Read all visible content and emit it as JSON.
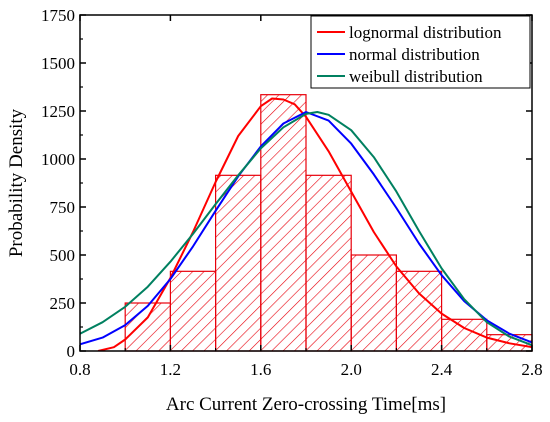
{
  "chart_data": {
    "type": "bar",
    "title": "",
    "xlabel": "Arc Current Zero-crossing Time[ms]",
    "ylabel": "Probability Density",
    "xlim": [
      0.8,
      2.8
    ],
    "ylim": [
      0,
      1750
    ],
    "x_ticks": [
      "0.8",
      "1.2",
      "1.6",
      "2.0",
      "2.4",
      "2.8"
    ],
    "y_ticks": [
      "0",
      "250",
      "500",
      "750",
      "1000",
      "1250",
      "1500",
      "1750"
    ],
    "grid": false,
    "legend_position": "top-right",
    "histogram": {
      "bin_edges": [
        1.0,
        1.2,
        1.4,
        1.6,
        1.8,
        2.0,
        2.2,
        2.4,
        2.6,
        2.8
      ],
      "values": [
        250,
        415,
        915,
        1335,
        915,
        500,
        415,
        165,
        85
      ],
      "color": "#e8000b",
      "fill": "hatched"
    },
    "series": [
      {
        "name": "lognormal distribution",
        "color": "#ff0000",
        "points": [
          [
            0.88,
            0
          ],
          [
            0.95,
            20
          ],
          [
            1.0,
            60
          ],
          [
            1.1,
            175
          ],
          [
            1.2,
            380
          ],
          [
            1.3,
            620
          ],
          [
            1.4,
            880
          ],
          [
            1.5,
            1120
          ],
          [
            1.6,
            1275
          ],
          [
            1.65,
            1315
          ],
          [
            1.7,
            1310
          ],
          [
            1.75,
            1285
          ],
          [
            1.8,
            1220
          ],
          [
            1.9,
            1040
          ],
          [
            2.0,
            830
          ],
          [
            2.1,
            620
          ],
          [
            2.2,
            440
          ],
          [
            2.3,
            300
          ],
          [
            2.4,
            195
          ],
          [
            2.5,
            120
          ],
          [
            2.6,
            70
          ],
          [
            2.7,
            40
          ],
          [
            2.8,
            20
          ]
        ]
      },
      {
        "name": "normal distribution",
        "color": "#0000ff",
        "points": [
          [
            0.8,
            35
          ],
          [
            0.9,
            70
          ],
          [
            1.0,
            135
          ],
          [
            1.1,
            235
          ],
          [
            1.2,
            375
          ],
          [
            1.3,
            545
          ],
          [
            1.4,
            730
          ],
          [
            1.5,
            910
          ],
          [
            1.6,
            1065
          ],
          [
            1.7,
            1185
          ],
          [
            1.8,
            1245
          ],
          [
            1.9,
            1200
          ],
          [
            2.0,
            1080
          ],
          [
            2.1,
            920
          ],
          [
            2.2,
            745
          ],
          [
            2.3,
            560
          ],
          [
            2.4,
            395
          ],
          [
            2.5,
            260
          ],
          [
            2.6,
            160
          ],
          [
            2.7,
            90
          ],
          [
            2.8,
            45
          ]
        ]
      },
      {
        "name": "weibull distribution",
        "color": "#008060",
        "points": [
          [
            0.8,
            90
          ],
          [
            0.9,
            150
          ],
          [
            1.0,
            230
          ],
          [
            1.1,
            335
          ],
          [
            1.2,
            465
          ],
          [
            1.3,
            610
          ],
          [
            1.4,
            765
          ],
          [
            1.5,
            915
          ],
          [
            1.6,
            1055
          ],
          [
            1.7,
            1165
          ],
          [
            1.8,
            1235
          ],
          [
            1.85,
            1245
          ],
          [
            1.9,
            1230
          ],
          [
            2.0,
            1150
          ],
          [
            2.1,
            1010
          ],
          [
            2.2,
            830
          ],
          [
            2.3,
            625
          ],
          [
            2.4,
            430
          ],
          [
            2.5,
            270
          ],
          [
            2.6,
            150
          ],
          [
            2.7,
            75
          ],
          [
            2.8,
            30
          ]
        ]
      }
    ]
  }
}
